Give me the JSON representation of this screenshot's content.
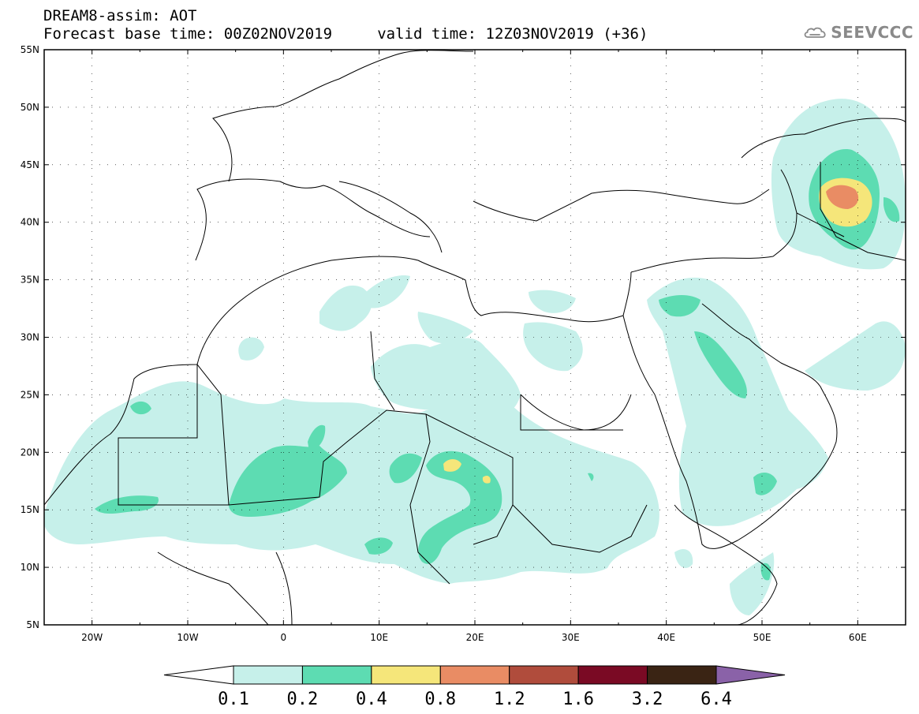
{
  "header": {
    "title_line1": "DREAM8-assim: AOT",
    "title_line2": "Forecast base time: 00Z02NOV2019     valid time: 12Z03NOV2019 (+36)"
  },
  "logo": {
    "icon": "cloud-icon",
    "text": "SEEVCCC"
  },
  "map": {
    "lon_range": [
      -25,
      65
    ],
    "lat_range": [
      5,
      55
    ],
    "lat_labels": [
      "55N",
      "50N",
      "45N",
      "40N",
      "35N",
      "30N",
      "25N",
      "20N",
      "15N",
      "10N",
      "5N"
    ],
    "lon_labels": [
      "20W",
      "10W",
      "0",
      "10E",
      "20E",
      "30E",
      "40E",
      "50E",
      "60E"
    ],
    "grid": "dotted"
  },
  "colorbar": {
    "labels": [
      "0.1",
      "0.2",
      "0.4",
      "0.8",
      "1.2",
      "1.6",
      "3.2",
      "6.4"
    ],
    "colors": [
      "#ffffff",
      "#c6f0ea",
      "#5ddcb2",
      "#f5e67a",
      "#e98c64",
      "#b04c3c",
      "#7a0a24",
      "#3a2414",
      "#8a62a8"
    ]
  },
  "colors": {
    "light": "#c6f0ea",
    "mid": "#5ddcb2",
    "yellow": "#f5e67a",
    "orange": "#e98c64"
  }
}
